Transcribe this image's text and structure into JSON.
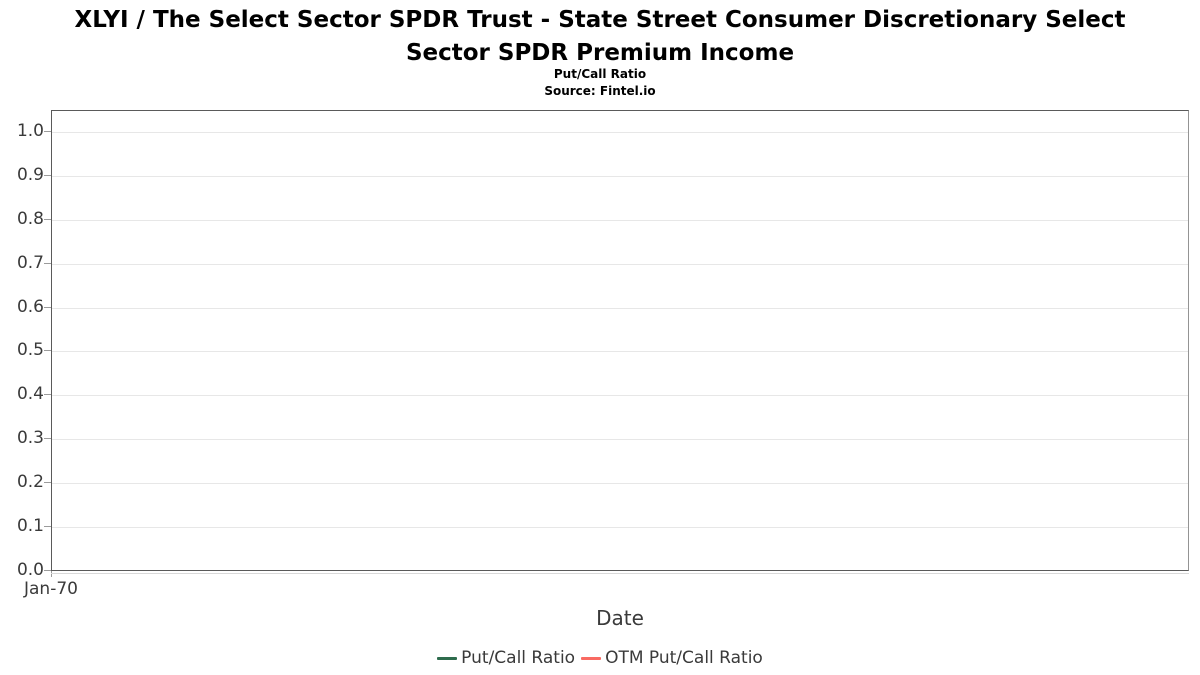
{
  "header": {
    "title_line1": "XLYI / The Select Sector SPDR Trust - State Street Consumer Discretionary Select",
    "title_line2": "Sector SPDR Premium Income",
    "subtitle": "Put/Call Ratio",
    "source": "Source: Fintel.io"
  },
  "axes": {
    "x_label": "Date",
    "x_tick_labels": [
      "Jan-70"
    ],
    "y_tick_labels": [
      "0.0",
      "0.1",
      "0.2",
      "0.3",
      "0.4",
      "0.5",
      "0.6",
      "0.7",
      "0.8",
      "0.9",
      "1.0"
    ]
  },
  "legend": {
    "items": [
      {
        "label": "Put/Call Ratio",
        "color": "#2e6c4d"
      },
      {
        "label": "OTM Put/Call Ratio",
        "color": "#f96a62"
      }
    ]
  },
  "colors": {
    "axis_spine": "#5a5a5a",
    "axis_spine_right": "#949494",
    "gridline": "#e7e7e7",
    "tick_mark": "#9b9b9b",
    "label_text": "#3a3a3a",
    "title_text": "#000000",
    "background": "#ffffff"
  },
  "chart_data": {
    "type": "line",
    "title": "XLYI / The Select Sector SPDR Trust - State Street Consumer Discretionary Select Sector SPDR Premium Income",
    "subtitle": "Put/Call Ratio",
    "source": "Source: Fintel.io",
    "xlabel": "Date",
    "ylabel": "",
    "x": [
      "Jan-70"
    ],
    "y_ticks": [
      0.0,
      0.1,
      0.2,
      0.3,
      0.4,
      0.5,
      0.6,
      0.7,
      0.8,
      0.9,
      1.0
    ],
    "ylim": [
      0.0,
      1.05
    ],
    "grid": true,
    "legend_position": "bottom",
    "series": [
      {
        "name": "Put/Call Ratio",
        "color": "#2e6c4d",
        "values": []
      },
      {
        "name": "OTM Put/Call Ratio",
        "color": "#f96a62",
        "values": []
      }
    ]
  }
}
